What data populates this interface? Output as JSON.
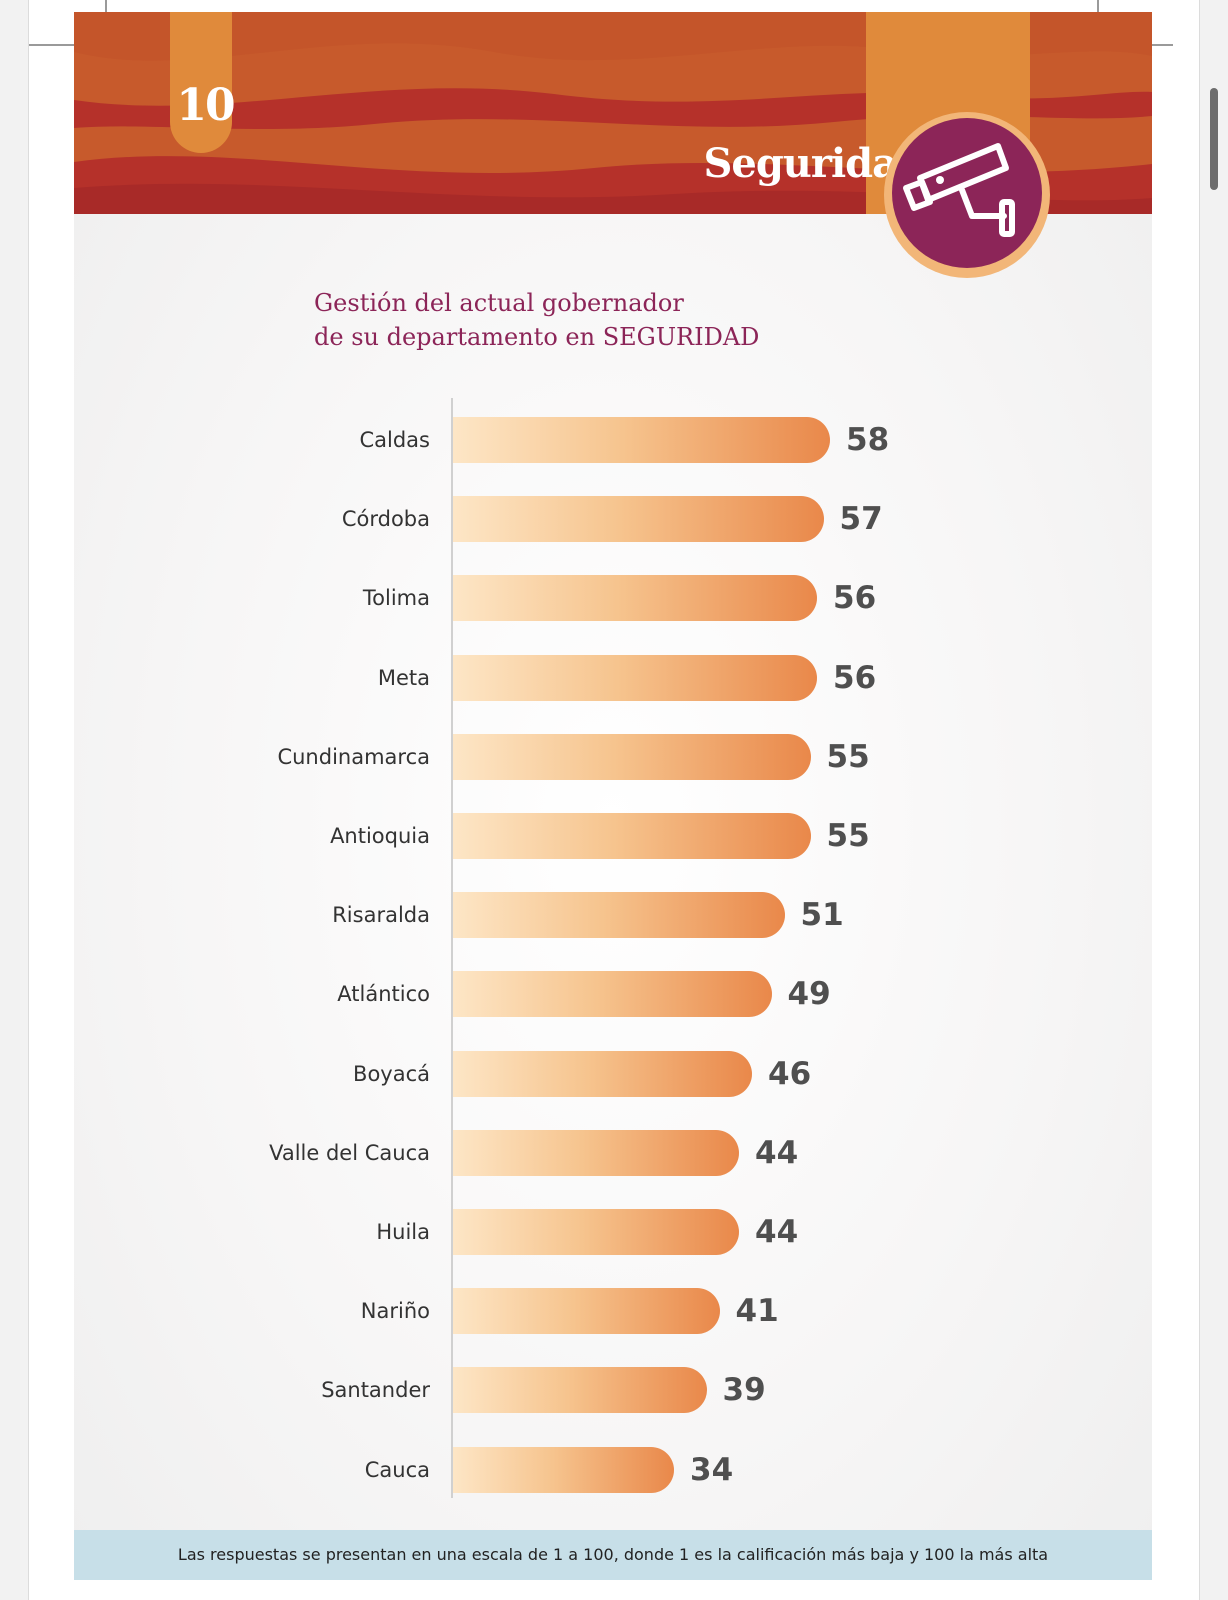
{
  "page": {
    "number": "10",
    "section": "Seguridad",
    "section_icon": "security-camera-icon"
  },
  "colors": {
    "banner_dark": "#b5312a",
    "banner_mid": "#c75a2c",
    "banner_light": "#e08a3b",
    "badge_fill": "#8c2558",
    "badge_ring": "#f2b678",
    "title_color": "#8c2558",
    "bar_start": "#fde6c6",
    "bar_end": "#e9884a",
    "footnote_bg": "#c7dfe8"
  },
  "chart_data": {
    "type": "bar",
    "orientation": "horizontal",
    "title_lines": [
      "Gestión del actual gobernador",
      "de su departamento en SEGURIDAD"
    ],
    "categories": [
      "Caldas",
      "Córdoba",
      "Tolima",
      "Meta",
      "Cundinamarca",
      "Antioquia",
      "Risaralda",
      "Atlántico",
      "Boyacá",
      "Valle del Cauca",
      "Huila",
      "Nariño",
      "Santander",
      "Cauca"
    ],
    "values": [
      58,
      57,
      56,
      56,
      55,
      55,
      51,
      49,
      46,
      44,
      44,
      41,
      39,
      34
    ],
    "scale": [
      1,
      100
    ],
    "grid": false,
    "legend": "none"
  },
  "footnote": "Las respuestas se presentan en una escala de 1 a 100, donde 1 es la calificación más baja y 100 la más alta"
}
